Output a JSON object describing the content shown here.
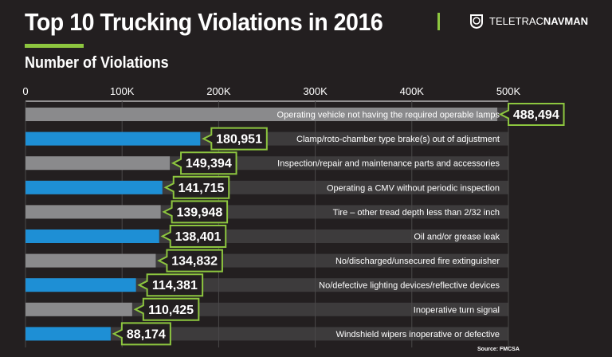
{
  "header": {
    "title": "Top 10 Trucking Violations in 2016",
    "brand": "TELETRAC NAVMAN",
    "brand_a": "TELETRAC",
    "brand_b": "NAVMAN"
  },
  "source": "Source: FMCSA",
  "colors": {
    "background": "#231f20",
    "gray_bar": "#8a8a8c",
    "blue_bar": "#1e8fd5",
    "track": "#3d3b3c",
    "accent": "#8dc63f"
  },
  "chart_data": {
    "type": "bar",
    "orientation": "horizontal",
    "title": "Number of Violations",
    "xlim": [
      0,
      500000
    ],
    "ticks": [
      0,
      100000,
      200000,
      300000,
      400000,
      500000
    ],
    "tick_labels": [
      "0",
      "100K",
      "200K",
      "300K",
      "400K",
      "500K"
    ],
    "grid": true,
    "categories": [
      "Operating vehicle not having the required operable lamps",
      "Clamp/roto-chamber type brake(s) out of adjustment",
      "Inspection/repair and maintenance parts and accessories",
      "Operating a CMV without periodic inspection",
      "Tire – other tread depth less than 2/32 inch",
      "Oil and/or grease leak",
      "No/discharged/unsecured fire extinguisher",
      "No/defective lighting devices/reflective devices",
      "Inoperative turn signal",
      "Windshield wipers inoperative or defective"
    ],
    "values": [
      488494,
      180951,
      149394,
      141715,
      139948,
      138401,
      134832,
      114381,
      110425,
      88174
    ],
    "value_labels": [
      "488,494",
      "180,951",
      "149,394",
      "141,715",
      "139,948",
      "138,401",
      "134,832",
      "114,381",
      "110,425",
      "88,174"
    ],
    "bar_colors": [
      "gray",
      "blue",
      "gray",
      "blue",
      "gray",
      "blue",
      "gray",
      "blue",
      "gray",
      "blue"
    ]
  }
}
